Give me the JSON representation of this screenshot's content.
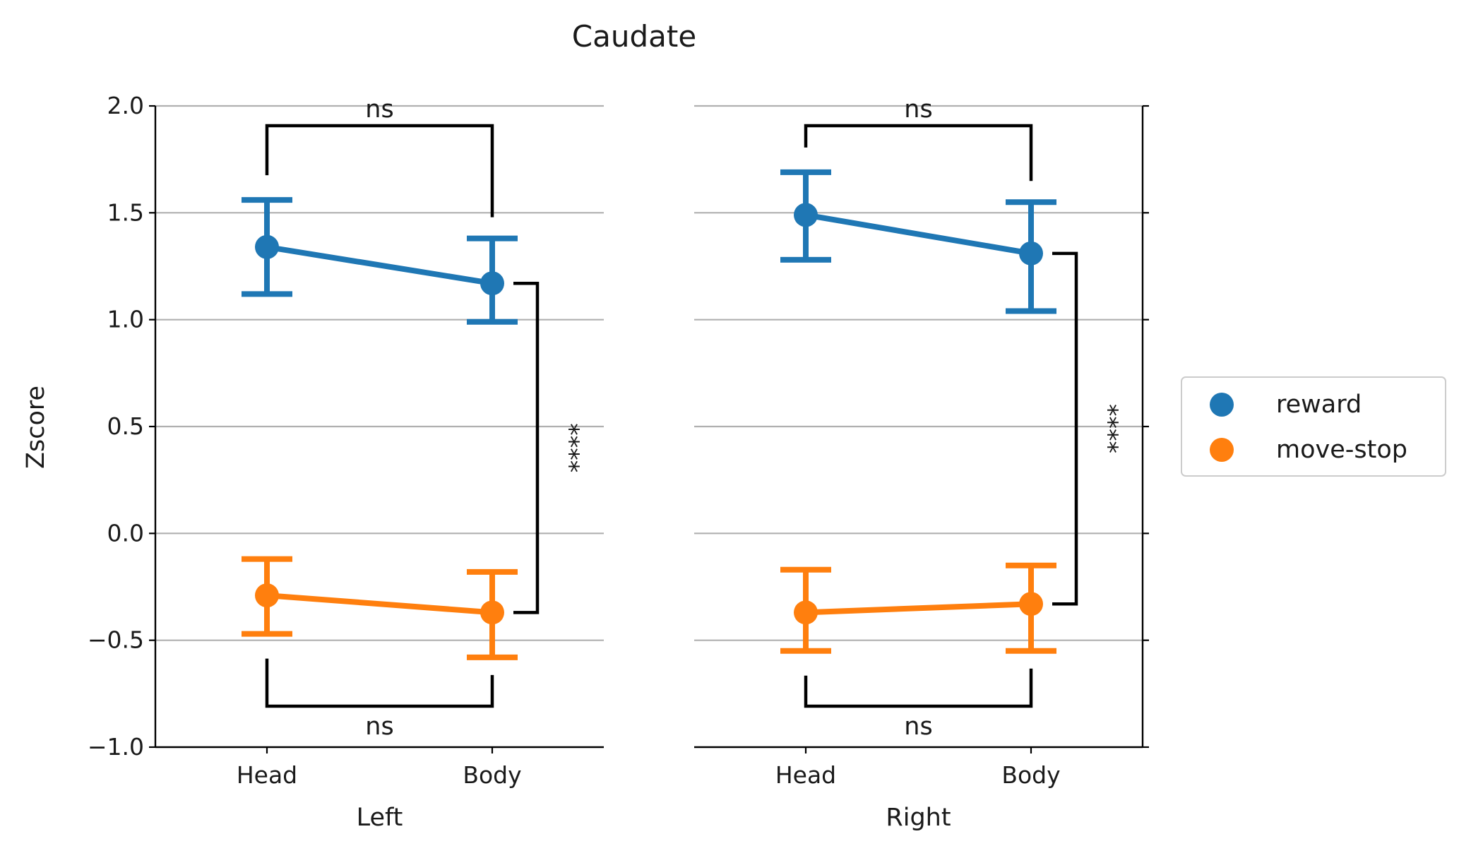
{
  "chart_data": {
    "type": "pointplot",
    "title": "Caudate",
    "ylabel": "Zscore",
    "ylim": [
      -1.0,
      2.0
    ],
    "yticks": [
      2.0,
      1.5,
      1.0,
      0.5,
      0.0,
      -0.5,
      -1.0
    ],
    "ytick_labels": [
      "2.0",
      "1.5",
      "1.0",
      "0.5",
      "0.0",
      "−0.5",
      "−1.0"
    ],
    "grid": "horizontal",
    "legend": {
      "placement": "right",
      "entries": [
        {
          "name": "reward",
          "color": "#1f77b4"
        },
        {
          "name": "move-stop",
          "color": "#ff7f0e"
        }
      ]
    },
    "panels": [
      {
        "xlabel": "Left",
        "categories": [
          "Head",
          "Body"
        ],
        "series": [
          {
            "name": "reward",
            "values": [
              1.34,
              1.17
            ],
            "ci_low": [
              1.12,
              0.99
            ],
            "ci_high": [
              1.56,
              1.38
            ]
          },
          {
            "name": "move-stop",
            "values": [
              -0.29,
              -0.37
            ],
            "ci_low": [
              -0.47,
              -0.58
            ],
            "ci_high": [
              -0.12,
              -0.18
            ]
          }
        ],
        "annotations": [
          {
            "label": "ns",
            "between": "Head reward – Body reward"
          },
          {
            "label": "****",
            "between": "Body reward – Body move-stop"
          },
          {
            "label": "ns",
            "between": "Head move-stop – Body move-stop"
          }
        ]
      },
      {
        "xlabel": "Right",
        "categories": [
          "Head",
          "Body"
        ],
        "series": [
          {
            "name": "reward",
            "values": [
              1.49,
              1.31
            ],
            "ci_low": [
              1.28,
              1.04
            ],
            "ci_high": [
              1.69,
              1.55
            ]
          },
          {
            "name": "move-stop",
            "values": [
              -0.37,
              -0.33
            ],
            "ci_low": [
              -0.55,
              -0.55
            ],
            "ci_high": [
              -0.17,
              -0.15
            ]
          }
        ],
        "annotations": [
          {
            "label": "ns",
            "between": "Head reward – Body reward"
          },
          {
            "label": "****",
            "between": "Body reward – Body move-stop"
          },
          {
            "label": "ns",
            "between": "Head move-stop – Body move-stop"
          }
        ]
      }
    ]
  }
}
